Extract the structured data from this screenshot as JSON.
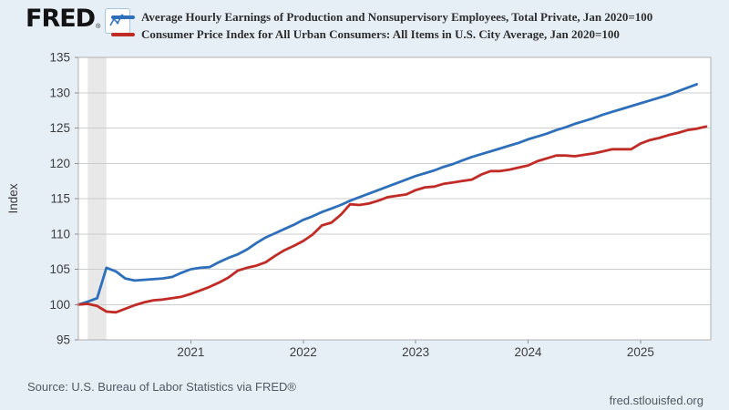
{
  "header": {
    "logo_text": "FRED",
    "registered_mark": "®",
    "legend": [
      {
        "label": "Average Hourly Earnings of Production and Nonsupervisory Employees, Total Private, Jan 2020=100",
        "color": "#2e6fbb"
      },
      {
        "label": "Consumer Price Index for All Urban Consumers: All Items in U.S. City Average, Jan 2020=100",
        "color": "#c12b26"
      }
    ]
  },
  "chart_data": {
    "type": "line",
    "title": "",
    "xlabel": "",
    "ylabel": "Index",
    "ylim": [
      95,
      135
    ],
    "yticks": [
      95,
      100,
      105,
      110,
      115,
      120,
      125,
      130,
      135
    ],
    "xticks": [
      "2021",
      "2022",
      "2023",
      "2024",
      "2025"
    ],
    "xtick_months": [
      12,
      24,
      36,
      48,
      60
    ],
    "x_start": "2020-01",
    "x_months_span": 67.5,
    "grid": "horizontal",
    "legend_position": "top",
    "plot_background": "#ffffff",
    "recession_band": {
      "from_month": 1,
      "to_month": 3,
      "color": "#e8e8e8",
      "note": "Feb 2020 - Apr 2020 recession shading"
    },
    "series": [
      {
        "id": "average-hourly-earnings",
        "name": "Average Hourly Earnings of Production and Nonsupervisory Employees, Total Private, Jan 2020=100",
        "color": "#2e6fbb",
        "start_month": 0,
        "frequency": "monthly",
        "values": [
          100.0,
          100.4,
          100.9,
          105.2,
          104.7,
          103.7,
          103.4,
          103.5,
          103.6,
          103.7,
          103.9,
          104.5,
          105.0,
          105.2,
          105.3,
          106.0,
          106.6,
          107.1,
          107.8,
          108.7,
          109.5,
          110.1,
          110.7,
          111.3,
          112.0,
          112.5,
          113.1,
          113.6,
          114.1,
          114.7,
          115.2,
          115.7,
          116.2,
          116.7,
          117.2,
          117.7,
          118.2,
          118.6,
          119.0,
          119.5,
          119.9,
          120.4,
          120.9,
          121.3,
          121.7,
          122.1,
          122.5,
          122.9,
          123.4,
          123.8,
          124.2,
          124.7,
          125.1,
          125.6,
          126.0,
          126.4,
          126.9,
          127.3,
          127.7,
          128.1,
          128.5,
          128.9,
          129.3,
          129.7,
          130.2,
          130.7,
          131.2
        ]
      },
      {
        "id": "consumer-price-index",
        "name": "Consumer Price Index for All Urban Consumers: All Items in U.S. City Average, Jan 2020=100",
        "color": "#c12b26",
        "start_month": 0,
        "frequency": "monthly",
        "values": [
          100.0,
          100.1,
          99.8,
          99.0,
          98.9,
          99.4,
          99.9,
          100.3,
          100.6,
          100.7,
          100.9,
          101.1,
          101.5,
          102.0,
          102.5,
          103.1,
          103.8,
          104.8,
          105.2,
          105.5,
          106.0,
          106.9,
          107.7,
          108.3,
          109.0,
          109.9,
          111.2,
          111.6,
          112.7,
          114.2,
          114.1,
          114.3,
          114.7,
          115.2,
          115.4,
          115.6,
          116.2,
          116.6,
          116.7,
          117.1,
          117.3,
          117.5,
          117.7,
          118.4,
          118.9,
          118.9,
          119.1,
          119.4,
          119.7,
          120.3,
          120.7,
          121.1,
          121.1,
          121.0,
          121.2,
          121.4,
          121.7,
          122.0,
          122.0,
          122.0,
          122.8,
          123.3,
          123.6,
          124.0,
          124.3,
          124.7,
          124.9,
          125.2
        ]
      }
    ]
  },
  "footer": {
    "source": "Source: U.S. Bureau of Labor Statistics via FRED®",
    "site": "fred.stlouisfed.org"
  }
}
